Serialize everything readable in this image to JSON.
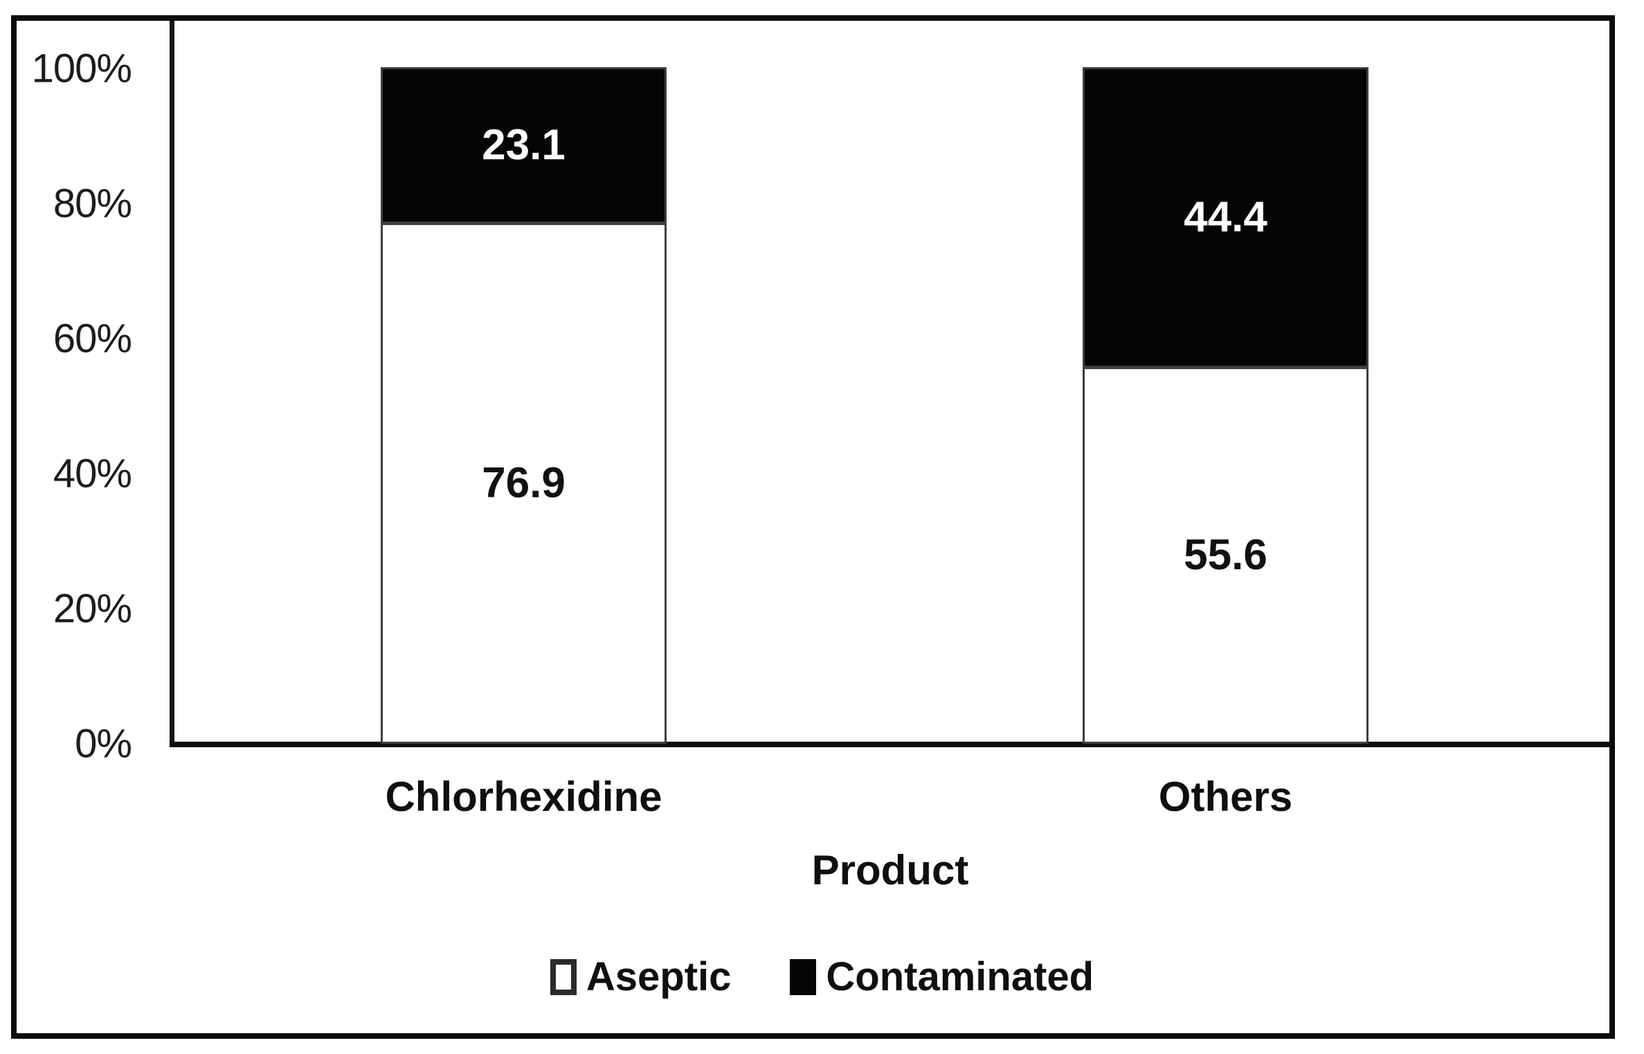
{
  "chart_data": {
    "type": "bar",
    "variant": "stacked-100-percent",
    "categories": [
      "Chlorhexidine",
      "Others"
    ],
    "series": [
      {
        "name": "Aseptic",
        "values": [
          76.9,
          55.6
        ],
        "color": "#ffffff",
        "label_color": "#111111"
      },
      {
        "name": "Contaminated",
        "values": [
          23.1,
          44.4
        ],
        "color": "#050505",
        "label_color": "#ffffff"
      }
    ],
    "xlabel": "Product",
    "ylabel": "",
    "ylim": [
      0,
      100
    ],
    "yticks": [
      "100%",
      "80%",
      "60%",
      "40%",
      "20%",
      "0%"
    ],
    "ytick_format": "percent",
    "grid": false,
    "legend_position": "bottom",
    "data_labels": "centered-one-decimal",
    "frame_color": "#0b0b0b",
    "axis_color": "#111111"
  }
}
